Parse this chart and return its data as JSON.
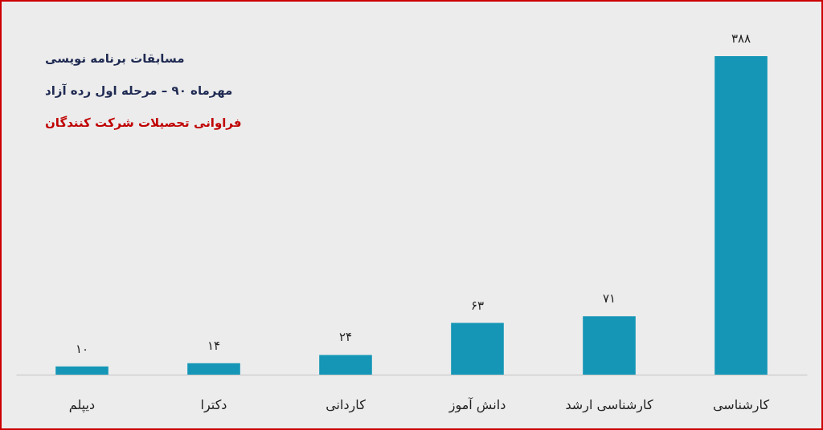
{
  "chart_data": {
    "type": "bar",
    "title": "مسابقات برنامه نویسی",
    "subtitle": "مهرماه ۹۰ – مرحله اول رده آزاد",
    "annotations": [
      "فراوانی تحصیلات شرکت کنندگان"
    ],
    "categories": [
      "دیپلم",
      "دکترا",
      "کاردانی",
      "دانش آموز",
      "کارشناسی ارشد",
      "کارشناسی"
    ],
    "values": [
      10,
      14,
      24,
      63,
      71,
      388
    ],
    "value_labels": [
      "۱۰",
      "۱۴",
      "۲۴",
      "۶۳",
      "۷۱",
      "۳۸۸"
    ],
    "color": "#1596b6",
    "tick_labels": "x"
  }
}
